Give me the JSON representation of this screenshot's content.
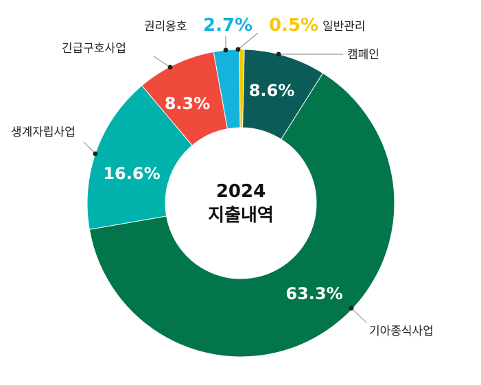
{
  "chart_data": {
    "type": "pie",
    "center_title": [
      "2024",
      "지출내역"
    ],
    "slices": [
      {
        "label": "캠페인",
        "value": 8.6,
        "value_text": "8.6%",
        "color": "#0b5b58",
        "label_pos": "inside"
      },
      {
        "label": "기아종식사업",
        "value": 63.3,
        "value_text": "63.3%",
        "color": "#02754a",
        "label_pos": "inside"
      },
      {
        "label": "생계자립사업",
        "value": 16.6,
        "value_text": "16.6%",
        "color": "#00b2ab",
        "label_pos": "inside"
      },
      {
        "label": "긴급구호사업",
        "value": 8.3,
        "value_text": "8.3%",
        "color": "#ef4a3c",
        "label_pos": "inside"
      },
      {
        "label": "권리옹호",
        "value": 2.7,
        "value_text": "2.7%",
        "color": "#14b3de",
        "label_pos": "outside"
      },
      {
        "label": "일반관리",
        "value": 0.5,
        "value_text": "0.5%",
        "color": "#f5c800",
        "label_pos": "outside"
      }
    ]
  }
}
